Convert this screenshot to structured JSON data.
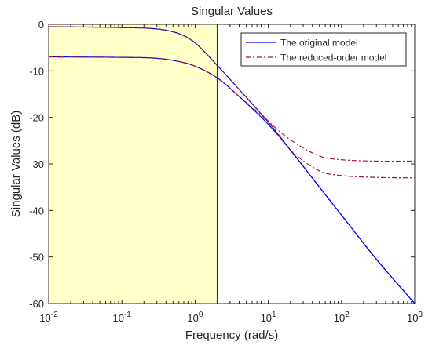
{
  "chart_data": {
    "type": "line",
    "title": "Singular Values",
    "xlabel": "Frequency (rad/s)",
    "ylabel": "Singular Values (dB)",
    "xscale": "log",
    "xlim": [
      0.01,
      1000
    ],
    "ylim": [
      -60,
      0
    ],
    "x_ticks": [
      {
        "value": 0.01,
        "base": "10",
        "exp": "-2"
      },
      {
        "value": 0.1,
        "base": "10",
        "exp": "-1"
      },
      {
        "value": 1,
        "base": "10",
        "exp": "0"
      },
      {
        "value": 10,
        "base": "10",
        "exp": "1"
      },
      {
        "value": 100,
        "base": "10",
        "exp": "2"
      },
      {
        "value": 1000,
        "base": "10",
        "exp": "3"
      }
    ],
    "y_ticks": [
      {
        "value": 0,
        "label": "0"
      },
      {
        "value": -10,
        "label": "-10"
      },
      {
        "value": -20,
        "label": "-20"
      },
      {
        "value": -30,
        "label": "-30"
      },
      {
        "value": -40,
        "label": "-40"
      },
      {
        "value": -50,
        "label": "-50"
      },
      {
        "value": -60,
        "label": "-60"
      }
    ],
    "grid": false,
    "legend_position": "top-right",
    "highlight_region": {
      "x": [
        0.01,
        2
      ],
      "color": "#ffffc8"
    },
    "series": [
      {
        "name": "The original model",
        "color": "#0000ff",
        "style": "solid",
        "curves": [
          {
            "x": [
              0.01,
              0.1,
              0.3,
              0.6,
              1,
              2,
              4,
              10,
              20,
              50,
              100,
              300,
              1000
            ],
            "y": [
              -0.5,
              -0.7,
              -1.0,
              -2.0,
              -4.0,
              -8.8,
              -14.0,
              -21.0,
              -27.0,
              -35.0,
              -41.0,
              -50.5,
              -60.0
            ]
          },
          {
            "x": [
              0.01,
              0.1,
              0.3,
              0.6,
              1,
              2,
              4,
              10,
              20,
              50,
              100,
              300,
              1000
            ],
            "y": [
              -7.0,
              -7.1,
              -7.3,
              -8.0,
              -9.0,
              -11.5,
              -15.5,
              -21.5,
              -27.0,
              -35.0,
              -41.0,
              -50.5,
              -60.0
            ]
          }
        ]
      },
      {
        "name": "The reduced-order model",
        "color": "#a2142f",
        "style": "dashdot",
        "curves": [
          {
            "x": [
              0.01,
              0.1,
              0.3,
              0.6,
              1,
              2,
              4,
              10,
              20,
              50,
              100,
              300,
              1000
            ],
            "y": [
              -0.5,
              -0.7,
              -1.0,
              -2.0,
              -4.0,
              -8.8,
              -14.0,
              -20.8,
              -24.8,
              -28.3,
              -29.1,
              -29.4,
              -29.4
            ]
          },
          {
            "x": [
              0.01,
              0.1,
              0.3,
              0.6,
              1,
              2,
              4,
              10,
              20,
              50,
              100,
              300,
              1000
            ],
            "y": [
              -7.0,
              -7.1,
              -7.3,
              -8.0,
              -9.0,
              -11.5,
              -15.5,
              -21.0,
              -27.0,
              -31.5,
              -32.5,
              -32.9,
              -33.0
            ]
          }
        ]
      }
    ]
  }
}
